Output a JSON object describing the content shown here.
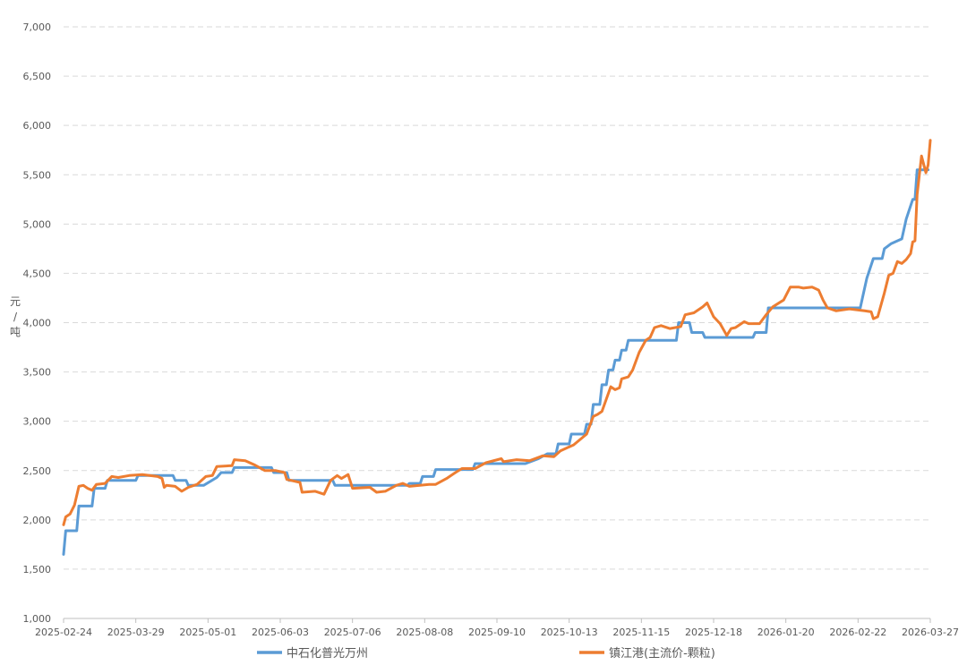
{
  "chart_data": {
    "type": "line",
    "title": "",
    "xlabel": "",
    "ylabel": "元/吨",
    "ylim": [
      1000,
      7000
    ],
    "yticks": [
      1000,
      1500,
      2000,
      2500,
      3000,
      3500,
      4000,
      4500,
      5000,
      5500,
      6000,
      6500,
      7000
    ],
    "ytick_labels": [
      "1,000",
      "1,500",
      "2,000",
      "2,500",
      "3,000",
      "3,500",
      "4,000",
      "4,500",
      "5,000",
      "5,500",
      "6,000",
      "6,500",
      "7,000"
    ],
    "xlim": [
      "2025-02-24",
      "2026-03-27"
    ],
    "xtick_labels": [
      "2025-02-24",
      "2025-03-29",
      "2025-05-01",
      "2025-06-03",
      "2025-07-06",
      "2025-08-08",
      "2025-09-10",
      "2025-10-13",
      "2025-11-15",
      "2025-12-18",
      "2026-01-20",
      "2026-02-22",
      "2026-03-27"
    ],
    "grid": "horizontal dashed",
    "legend": "bottom",
    "series": [
      {
        "name": "中石化普光万州",
        "color": "#5b9bd5",
        "points": [
          [
            "2025-02-24",
            1650
          ],
          [
            "2025-02-25",
            1890
          ],
          [
            "2025-03-02",
            1890
          ],
          [
            "2025-03-03",
            2140
          ],
          [
            "2025-03-09",
            2140
          ],
          [
            "2025-03-10",
            2320
          ],
          [
            "2025-03-15",
            2320
          ],
          [
            "2025-03-16",
            2400
          ],
          [
            "2025-03-29",
            2400
          ],
          [
            "2025-03-30",
            2450
          ],
          [
            "2025-04-15",
            2450
          ],
          [
            "2025-04-16",
            2400
          ],
          [
            "2025-04-21",
            2400
          ],
          [
            "2025-04-22",
            2350
          ],
          [
            "2025-04-29",
            2350
          ],
          [
            "2025-05-05",
            2430
          ],
          [
            "2025-05-07",
            2480
          ],
          [
            "2025-05-12",
            2480
          ],
          [
            "2025-05-13",
            2530
          ],
          [
            "2025-05-30",
            2530
          ],
          [
            "2025-05-31",
            2480
          ],
          [
            "2025-06-06",
            2480
          ],
          [
            "2025-06-07",
            2400
          ],
          [
            "2025-06-27",
            2400
          ],
          [
            "2025-06-28",
            2350
          ],
          [
            "2025-07-31",
            2350
          ],
          [
            "2025-08-01",
            2370
          ],
          [
            "2025-08-06",
            2370
          ],
          [
            "2025-08-07",
            2440
          ],
          [
            "2025-08-12",
            2440
          ],
          [
            "2025-08-13",
            2510
          ],
          [
            "2025-08-30",
            2510
          ],
          [
            "2025-08-31",
            2570
          ],
          [
            "2025-09-23",
            2570
          ],
          [
            "2025-09-29",
            2620
          ],
          [
            "2025-10-03",
            2670
          ],
          [
            "2025-10-07",
            2670
          ],
          [
            "2025-10-08",
            2770
          ],
          [
            "2025-10-13",
            2770
          ],
          [
            "2025-10-14",
            2870
          ],
          [
            "2025-10-20",
            2870
          ],
          [
            "2025-10-21",
            2970
          ],
          [
            "2025-10-23",
            2970
          ],
          [
            "2025-10-24",
            3170
          ],
          [
            "2025-10-27",
            3170
          ],
          [
            "2025-10-28",
            3370
          ],
          [
            "2025-10-30",
            3370
          ],
          [
            "2025-10-31",
            3520
          ],
          [
            "2025-11-02",
            3520
          ],
          [
            "2025-11-03",
            3620
          ],
          [
            "2025-11-05",
            3620
          ],
          [
            "2025-11-06",
            3720
          ],
          [
            "2025-11-08",
            3720
          ],
          [
            "2025-11-09",
            3820
          ],
          [
            "2025-12-01",
            3820
          ],
          [
            "2025-12-02",
            4000
          ],
          [
            "2025-12-07",
            4000
          ],
          [
            "2025-12-08",
            3900
          ],
          [
            "2025-12-13",
            3900
          ],
          [
            "2025-12-14",
            3850
          ],
          [
            "2026-01-05",
            3850
          ],
          [
            "2026-01-06",
            3900
          ],
          [
            "2026-01-11",
            3900
          ],
          [
            "2026-01-12",
            4150
          ],
          [
            "2026-02-23",
            4150
          ],
          [
            "2026-02-24",
            4250
          ],
          [
            "2026-02-26",
            4450
          ],
          [
            "2026-03-01",
            4650
          ],
          [
            "2026-03-05",
            4650
          ],
          [
            "2026-03-06",
            4750
          ],
          [
            "2026-03-09",
            4800
          ],
          [
            "2026-03-14",
            4850
          ],
          [
            "2026-03-16",
            5050
          ],
          [
            "2026-03-19",
            5250
          ],
          [
            "2026-03-20",
            5250
          ],
          [
            "2026-03-21",
            5550
          ],
          [
            "2026-03-26",
            5550
          ]
        ]
      },
      {
        "name": "镇江港(主流价-颗粒)",
        "color": "#ed7d31",
        "points": [
          [
            "2025-02-24",
            1950
          ],
          [
            "2025-02-25",
            2030
          ],
          [
            "2025-02-27",
            2060
          ],
          [
            "2025-03-01",
            2150
          ],
          [
            "2025-03-03",
            2340
          ],
          [
            "2025-03-05",
            2350
          ],
          [
            "2025-03-07",
            2320
          ],
          [
            "2025-03-09",
            2300
          ],
          [
            "2025-03-11",
            2360
          ],
          [
            "2025-03-15",
            2370
          ],
          [
            "2025-03-18",
            2440
          ],
          [
            "2025-03-21",
            2430
          ],
          [
            "2025-03-26",
            2450
          ],
          [
            "2025-04-01",
            2460
          ],
          [
            "2025-04-08",
            2440
          ],
          [
            "2025-04-10",
            2420
          ],
          [
            "2025-04-11",
            2330
          ],
          [
            "2025-04-12",
            2350
          ],
          [
            "2025-04-16",
            2340
          ],
          [
            "2025-04-19",
            2290
          ],
          [
            "2025-04-22",
            2330
          ],
          [
            "2025-04-26",
            2360
          ],
          [
            "2025-04-30",
            2440
          ],
          [
            "2025-05-03",
            2450
          ],
          [
            "2025-05-05",
            2540
          ],
          [
            "2025-05-12",
            2550
          ],
          [
            "2025-05-13",
            2610
          ],
          [
            "2025-05-18",
            2600
          ],
          [
            "2025-05-22",
            2560
          ],
          [
            "2025-05-27",
            2500
          ],
          [
            "2025-06-01",
            2500
          ],
          [
            "2025-06-05",
            2480
          ],
          [
            "2025-06-06",
            2410
          ],
          [
            "2025-06-12",
            2380
          ],
          [
            "2025-06-13",
            2280
          ],
          [
            "2025-06-19",
            2290
          ],
          [
            "2025-06-23",
            2260
          ],
          [
            "2025-06-26",
            2400
          ],
          [
            "2025-06-29",
            2450
          ],
          [
            "2025-07-01",
            2420
          ],
          [
            "2025-07-04",
            2460
          ],
          [
            "2025-07-06",
            2320
          ],
          [
            "2025-07-14",
            2330
          ],
          [
            "2025-07-17",
            2280
          ],
          [
            "2025-07-21",
            2290
          ],
          [
            "2025-07-26",
            2350
          ],
          [
            "2025-07-29",
            2370
          ],
          [
            "2025-08-01",
            2340
          ],
          [
            "2025-08-10",
            2360
          ],
          [
            "2025-08-13",
            2360
          ],
          [
            "2025-08-18",
            2420
          ],
          [
            "2025-08-22",
            2480
          ],
          [
            "2025-08-25",
            2520
          ],
          [
            "2025-08-31",
            2520
          ],
          [
            "2025-09-05",
            2580
          ],
          [
            "2025-09-12",
            2620
          ],
          [
            "2025-09-13",
            2590
          ],
          [
            "2025-09-19",
            2610
          ],
          [
            "2025-09-25",
            2600
          ],
          [
            "2025-10-01",
            2650
          ],
          [
            "2025-10-06",
            2640
          ],
          [
            "2025-10-09",
            2700
          ],
          [
            "2025-10-15",
            2760
          ],
          [
            "2025-10-21",
            2870
          ],
          [
            "2025-10-24",
            3050
          ],
          [
            "2025-10-26",
            3070
          ],
          [
            "2025-10-28",
            3100
          ],
          [
            "2025-11-01",
            3350
          ],
          [
            "2025-11-03",
            3320
          ],
          [
            "2025-11-05",
            3340
          ],
          [
            "2025-11-06",
            3430
          ],
          [
            "2025-11-09",
            3450
          ],
          [
            "2025-11-11",
            3520
          ],
          [
            "2025-11-14",
            3700
          ],
          [
            "2025-11-17",
            3820
          ],
          [
            "2025-11-19",
            3850
          ],
          [
            "2025-11-21",
            3950
          ],
          [
            "2025-11-24",
            3970
          ],
          [
            "2025-11-28",
            3940
          ],
          [
            "2025-12-03",
            3960
          ],
          [
            "2025-12-05",
            4080
          ],
          [
            "2025-12-09",
            4100
          ],
          [
            "2025-12-13",
            4160
          ],
          [
            "2025-12-15",
            4200
          ],
          [
            "2025-12-18",
            4060
          ],
          [
            "2025-12-21",
            3990
          ],
          [
            "2025-12-24",
            3870
          ],
          [
            "2025-12-26",
            3940
          ],
          [
            "2025-12-28",
            3950
          ],
          [
            "2026-01-01",
            4010
          ],
          [
            "2026-01-03",
            3990
          ],
          [
            "2026-01-08",
            3990
          ],
          [
            "2026-01-11",
            4080
          ],
          [
            "2026-01-14",
            4160
          ],
          [
            "2026-01-19",
            4230
          ],
          [
            "2026-01-22",
            4360
          ],
          [
            "2026-01-26",
            4360
          ],
          [
            "2026-01-28",
            4350
          ],
          [
            "2026-02-01",
            4360
          ],
          [
            "2026-02-04",
            4330
          ],
          [
            "2026-02-06",
            4230
          ],
          [
            "2026-02-08",
            4150
          ],
          [
            "2026-02-12",
            4120
          ],
          [
            "2026-02-18",
            4140
          ],
          [
            "2026-02-25",
            4120
          ],
          [
            "2026-02-28",
            4110
          ],
          [
            "2026-03-01",
            4040
          ],
          [
            "2026-03-03",
            4060
          ],
          [
            "2026-03-06",
            4300
          ],
          [
            "2026-03-08",
            4480
          ],
          [
            "2026-03-10",
            4500
          ],
          [
            "2026-03-12",
            4620
          ],
          [
            "2026-03-14",
            4600
          ],
          [
            "2026-03-16",
            4640
          ],
          [
            "2026-03-18",
            4700
          ],
          [
            "2026-03-19",
            4820
          ],
          [
            "2026-03-20",
            4830
          ],
          [
            "2026-03-21",
            5300
          ],
          [
            "2026-03-23",
            5690
          ],
          [
            "2026-03-25",
            5520
          ],
          [
            "2026-03-26",
            5600
          ],
          [
            "2026-03-27",
            5850
          ]
        ]
      }
    ]
  }
}
